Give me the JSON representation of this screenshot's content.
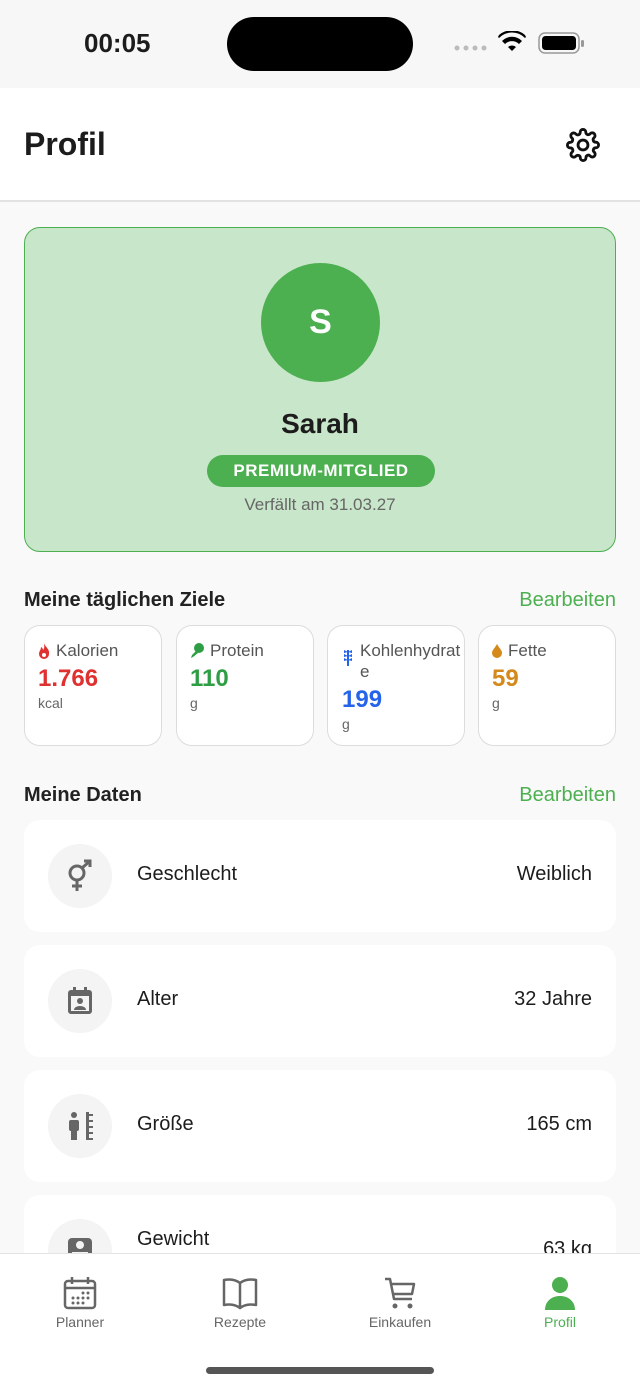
{
  "status": {
    "time": "00:05"
  },
  "header": {
    "title": "Profil"
  },
  "profile": {
    "initial": "S",
    "name": "Sarah",
    "badge": "PREMIUM-MITGLIED",
    "expiry": "Verfällt am 31.03.27"
  },
  "goals": {
    "title": "Meine täglichen Ziele",
    "edit": "Bearbeiten",
    "items": [
      {
        "label": "Kalorien",
        "value": "1.766",
        "unit": "kcal",
        "color": "#e03131",
        "icon": "flame-icon"
      },
      {
        "label": "Protein",
        "value": "110",
        "unit": "g",
        "color": "#2e9e44",
        "icon": "drumstick-icon"
      },
      {
        "label": "Kohlenhydrate",
        "value": "199",
        "unit": "g",
        "color": "#2563eb",
        "icon": "wheat-icon"
      },
      {
        "label": "Fette",
        "value": "59",
        "unit": "g",
        "color": "#d4891a",
        "icon": "drop-icon"
      }
    ]
  },
  "data": {
    "title": "Meine Daten",
    "edit": "Bearbeiten",
    "items": [
      {
        "label": "Geschlecht",
        "value": "Weiblich",
        "icon": "gender-icon"
      },
      {
        "label": "Alter",
        "value": "32 Jahre",
        "icon": "calendar-person-icon"
      },
      {
        "label": "Größe",
        "value": "165 cm",
        "icon": "height-icon"
      },
      {
        "label": "Gewicht",
        "value": "63 kg",
        "icon": "scale-icon"
      }
    ]
  },
  "tabs": [
    {
      "label": "Planner"
    },
    {
      "label": "Rezepte"
    },
    {
      "label": "Einkaufen"
    },
    {
      "label": "Profil",
      "active": true
    }
  ],
  "colors": {
    "accent": "#4caf50",
    "card": "#c8e6c9"
  }
}
